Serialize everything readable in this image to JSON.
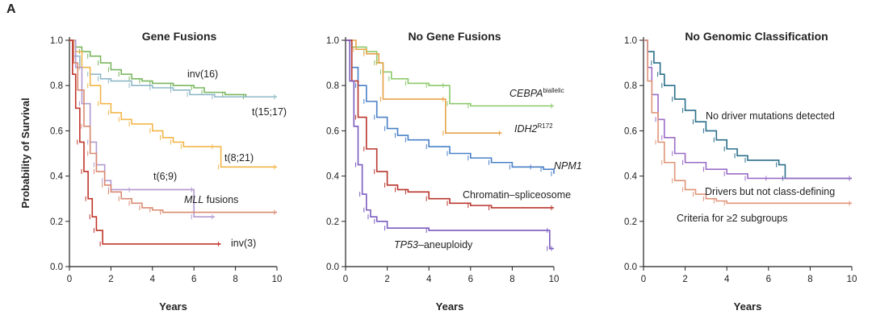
{
  "figure": {
    "panel_letter": "A",
    "y_axis_label": "Probability of Survival"
  },
  "chart_data": [
    {
      "type": "line",
      "title": "Gene Fusions",
      "xlabel": "Years",
      "ylabel": "Probability of Survival",
      "xlim": [
        0,
        10
      ],
      "ylim": [
        0,
        1.0
      ],
      "x_ticks": [
        "0",
        "2",
        "4",
        "6",
        "8",
        "10"
      ],
      "y_ticks": [
        "0.0",
        "0.2",
        "0.4",
        "0.6",
        "0.8",
        "1.0"
      ],
      "series": [
        {
          "name": "inv(16)",
          "color": "#7bb661",
          "points": [
            [
              0,
              1.0
            ],
            [
              0.3,
              0.97
            ],
            [
              0.6,
              0.95
            ],
            [
              1.0,
              0.93
            ],
            [
              1.5,
              0.9
            ],
            [
              2.0,
              0.87
            ],
            [
              2.5,
              0.85
            ],
            [
              3.0,
              0.83
            ],
            [
              3.5,
              0.82
            ],
            [
              4.0,
              0.81
            ],
            [
              5.0,
              0.8
            ],
            [
              6.0,
              0.79
            ],
            [
              6.5,
              0.77
            ],
            [
              7.5,
              0.76
            ],
            [
              8.5,
              0.75
            ],
            [
              10,
              0.75
            ]
          ]
        },
        {
          "name": "t(15;17)",
          "color": "#8fb8c8",
          "points": [
            [
              0,
              1.0
            ],
            [
              0.2,
              0.93
            ],
            [
              0.5,
              0.88
            ],
            [
              1.0,
              0.85
            ],
            [
              1.5,
              0.83
            ],
            [
              2.0,
              0.82
            ],
            [
              3.0,
              0.8
            ],
            [
              4.0,
              0.79
            ],
            [
              5.0,
              0.78
            ],
            [
              5.8,
              0.76
            ],
            [
              7.0,
              0.75
            ],
            [
              10,
              0.75
            ]
          ]
        },
        {
          "name": "t(8;21)",
          "color": "#f2b64a",
          "points": [
            [
              0,
              1.0
            ],
            [
              0.3,
              0.95
            ],
            [
              0.6,
              0.88
            ],
            [
              1.0,
              0.8
            ],
            [
              1.5,
              0.72
            ],
            [
              2.0,
              0.68
            ],
            [
              2.5,
              0.65
            ],
            [
              3.0,
              0.63
            ],
            [
              4.0,
              0.6
            ],
            [
              4.5,
              0.57
            ],
            [
              5.0,
              0.55
            ],
            [
              5.5,
              0.53
            ],
            [
              7.0,
              0.53
            ],
            [
              7.3,
              0.44
            ],
            [
              10,
              0.44
            ]
          ]
        },
        {
          "name": "t(6;9)",
          "color": "#b29ad0",
          "points": [
            [
              0,
              1.0
            ],
            [
              0.3,
              0.88
            ],
            [
              0.6,
              0.72
            ],
            [
              1.0,
              0.55
            ],
            [
              1.3,
              0.45
            ],
            [
              1.7,
              0.38
            ],
            [
              2.0,
              0.34
            ],
            [
              3.0,
              0.34
            ],
            [
              6.0,
              0.34
            ],
            [
              6.0,
              0.22
            ],
            [
              7.0,
              0.22
            ]
          ]
        },
        {
          "name": "MLL fusions",
          "color": "#d98a70",
          "points": [
            [
              0,
              1.0
            ],
            [
              0.2,
              0.9
            ],
            [
              0.4,
              0.78
            ],
            [
              0.7,
              0.62
            ],
            [
              1.0,
              0.5
            ],
            [
              1.3,
              0.42
            ],
            [
              1.7,
              0.36
            ],
            [
              2.0,
              0.33
            ],
            [
              2.5,
              0.3
            ],
            [
              3.0,
              0.28
            ],
            [
              3.5,
              0.26
            ],
            [
              4.0,
              0.25
            ],
            [
              4.5,
              0.24
            ],
            [
              10,
              0.24
            ]
          ]
        },
        {
          "name": "inv(3)",
          "color": "#c0352a",
          "points": [
            [
              0,
              1.0
            ],
            [
              0.15,
              0.85
            ],
            [
              0.3,
              0.7
            ],
            [
              0.5,
              0.55
            ],
            [
              0.7,
              0.42
            ],
            [
              0.9,
              0.3
            ],
            [
              1.1,
              0.22
            ],
            [
              1.3,
              0.16
            ],
            [
              1.6,
              0.1
            ],
            [
              7.3,
              0.1
            ]
          ]
        }
      ],
      "labels": [
        "inv(16)",
        "t(15;17)",
        "t(8;21)",
        "t(6;9)",
        "MLL fusions",
        "inv(3)"
      ]
    },
    {
      "type": "line",
      "title": "No Gene Fusions",
      "xlabel": "Years",
      "ylabel": "",
      "xlim": [
        0,
        10
      ],
      "ylim": [
        0,
        1.0
      ],
      "x_ticks": [
        "0",
        "2",
        "4",
        "6",
        "8",
        "10"
      ],
      "y_ticks": [
        "0.0",
        "0.2",
        "0.4",
        "0.6",
        "0.8",
        "1.0"
      ],
      "series": [
        {
          "name": "CEBPA biallelic",
          "color": "#8cc96b",
          "points": [
            [
              0,
              1.0
            ],
            [
              0.3,
              0.97
            ],
            [
              1.0,
              0.95
            ],
            [
              1.5,
              0.9
            ],
            [
              1.8,
              0.86
            ],
            [
              2.2,
              0.83
            ],
            [
              3.0,
              0.81
            ],
            [
              4.0,
              0.8
            ],
            [
              4.8,
              0.8
            ],
            [
              5.0,
              0.72
            ],
            [
              6.0,
              0.71
            ],
            [
              10,
              0.71
            ]
          ]
        },
        {
          "name": "IDH2 R172",
          "color": "#e8a24a",
          "points": [
            [
              0,
              1.0
            ],
            [
              0.5,
              0.96
            ],
            [
              1.0,
              0.94
            ],
            [
              1.6,
              0.9
            ],
            [
              1.8,
              0.74
            ],
            [
              4.8,
              0.74
            ],
            [
              4.8,
              0.59
            ],
            [
              7.5,
              0.59
            ]
          ]
        },
        {
          "name": "NPM1",
          "color": "#4a80c8",
          "points": [
            [
              0,
              1.0
            ],
            [
              0.3,
              0.88
            ],
            [
              0.6,
              0.8
            ],
            [
              1.0,
              0.73
            ],
            [
              1.5,
              0.66
            ],
            [
              2.0,
              0.61
            ],
            [
              2.5,
              0.58
            ],
            [
              3.0,
              0.56
            ],
            [
              4.0,
              0.53
            ],
            [
              5.0,
              0.5
            ],
            [
              6.0,
              0.48
            ],
            [
              7.0,
              0.46
            ],
            [
              8.0,
              0.44
            ],
            [
              9.0,
              0.44
            ],
            [
              9.5,
              0.43
            ],
            [
              10,
              0.41
            ]
          ]
        },
        {
          "name": "Chromatin–spliceosome",
          "color": "#b8362e",
          "points": [
            [
              0,
              1.0
            ],
            [
              0.3,
              0.82
            ],
            [
              0.6,
              0.66
            ],
            [
              1.0,
              0.52
            ],
            [
              1.5,
              0.42
            ],
            [
              2.0,
              0.36
            ],
            [
              2.5,
              0.34
            ],
            [
              3.0,
              0.33
            ],
            [
              4.0,
              0.3
            ],
            [
              5.0,
              0.28
            ],
            [
              6.0,
              0.27
            ],
            [
              7.0,
              0.26
            ],
            [
              10,
              0.26
            ]
          ]
        },
        {
          "name": "TP53–aneuploidy",
          "color": "#7b5cbf",
          "points": [
            [
              0,
              1.0
            ],
            [
              0.2,
              0.82
            ],
            [
              0.4,
              0.62
            ],
            [
              0.6,
              0.45
            ],
            [
              0.8,
              0.32
            ],
            [
              1.0,
              0.25
            ],
            [
              1.2,
              0.22
            ],
            [
              1.5,
              0.2
            ],
            [
              2.0,
              0.17
            ],
            [
              4.0,
              0.16
            ],
            [
              9.8,
              0.16
            ],
            [
              9.8,
              0.08
            ],
            [
              10,
              0.08
            ]
          ]
        }
      ],
      "labels": [
        "CEBPA",
        "biallelic",
        "IDH2",
        "R172",
        "NPM1",
        "Chromatin–spliceosome",
        "TP53",
        "–aneuploidy"
      ]
    },
    {
      "type": "line",
      "title": "No Genomic Classification",
      "xlabel": "Years",
      "ylabel": "",
      "xlim": [
        0,
        10
      ],
      "ylim": [
        0,
        1.0
      ],
      "x_ticks": [
        "0",
        "2",
        "4",
        "6",
        "8",
        "10"
      ],
      "y_ticks": [
        "0.0",
        "0.2",
        "0.4",
        "0.6",
        "0.8",
        "1.0"
      ],
      "series": [
        {
          "name": "No driver mutations detected",
          "color": "#2a6f8a",
          "points": [
            [
              0,
              1.0
            ],
            [
              0.2,
              0.95
            ],
            [
              0.5,
              0.9
            ],
            [
              0.8,
              0.85
            ],
            [
              1.0,
              0.8
            ],
            [
              1.5,
              0.74
            ],
            [
              2.0,
              0.69
            ],
            [
              2.5,
              0.64
            ],
            [
              3.0,
              0.6
            ],
            [
              3.5,
              0.56
            ],
            [
              4.0,
              0.52
            ],
            [
              4.5,
              0.49
            ],
            [
              5.0,
              0.47
            ],
            [
              6.5,
              0.45
            ],
            [
              6.8,
              0.39
            ],
            [
              10,
              0.39
            ]
          ]
        },
        {
          "name": "Drivers but not class-defining",
          "color": "#9b6cc8",
          "points": [
            [
              0,
              1.0
            ],
            [
              0.2,
              0.88
            ],
            [
              0.4,
              0.76
            ],
            [
              0.7,
              0.65
            ],
            [
              1.0,
              0.57
            ],
            [
              1.5,
              0.5
            ],
            [
              2.0,
              0.46
            ],
            [
              3.0,
              0.43
            ],
            [
              4.0,
              0.41
            ],
            [
              5.0,
              0.39
            ],
            [
              6.0,
              0.39
            ],
            [
              10,
              0.39
            ]
          ]
        },
        {
          "name": "Criteria for ≥2 subgroups",
          "color": "#e0957a",
          "points": [
            [
              0,
              1.0
            ],
            [
              0.2,
              0.82
            ],
            [
              0.4,
              0.68
            ],
            [
              0.7,
              0.55
            ],
            [
              1.0,
              0.46
            ],
            [
              1.5,
              0.38
            ],
            [
              2.0,
              0.34
            ],
            [
              2.5,
              0.32
            ],
            [
              3.0,
              0.3
            ],
            [
              3.5,
              0.29
            ],
            [
              4.0,
              0.28
            ],
            [
              10,
              0.28
            ]
          ]
        }
      ],
      "labels": [
        "No driver mutations detected",
        "Drivers but not class-defining",
        "Criteria for ≥2 subgroups"
      ]
    }
  ]
}
